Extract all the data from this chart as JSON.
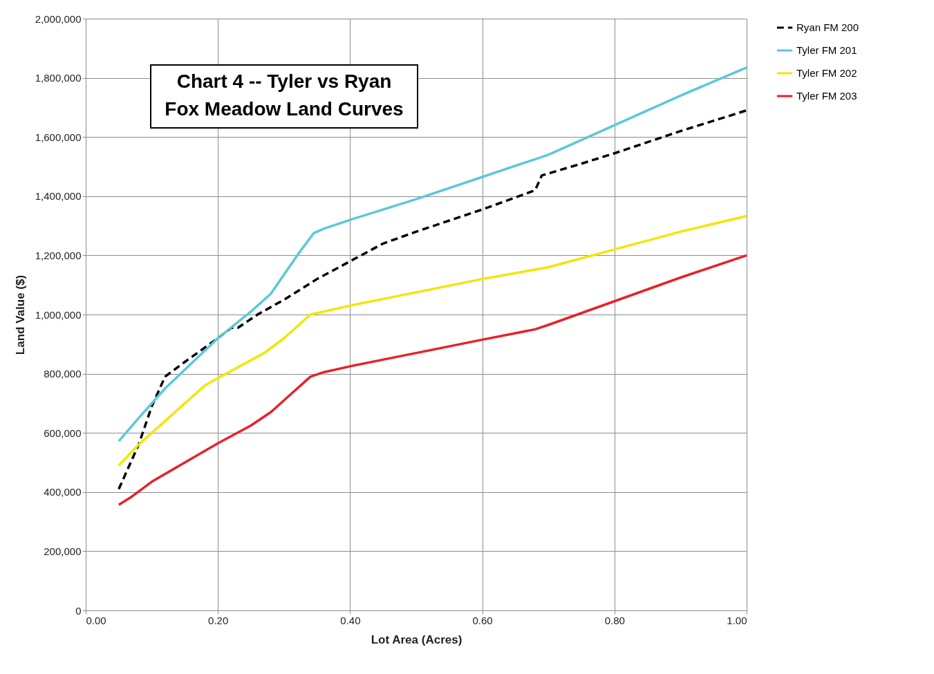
{
  "chart_data": {
    "type": "line",
    "title": "Chart 4 -- Tyler vs Ryan\nFox Meadow Land Curves",
    "xlabel": "Lot Area (Acres)",
    "ylabel": "Land Value ($)",
    "xlim": [
      0,
      1
    ],
    "xticks": [
      {
        "value": 0,
        "label": "0.00"
      },
      {
        "value": 0.2,
        "label": "0.20"
      },
      {
        "value": 0.4,
        "label": "0.40"
      },
      {
        "value": 0.6,
        "label": "0.60"
      },
      {
        "value": 0.8,
        "label": "0.80"
      },
      {
        "value": 1,
        "label": "1.00"
      }
    ],
    "ylim": [
      0,
      2000000
    ],
    "yticks": [
      0,
      {
        "value": 200000,
        "label": "200,000"
      },
      {
        "value": 400000,
        "label": "400,000"
      },
      {
        "value": 600000,
        "label": "600,000"
      },
      {
        "value": 800000,
        "label": "800,000"
      },
      {
        "value": 1000000,
        "label": "1,000,000"
      },
      {
        "value": 1200000,
        "label": "1,200,000"
      },
      {
        "value": 1400000,
        "label": "1,400,000"
      },
      {
        "value": 1600000,
        "label": "1,600,000"
      },
      {
        "value": 1800000,
        "label": "1,800,000"
      },
      {
        "value": 2000000,
        "label": "2,000,000"
      }
    ],
    "grid": true,
    "legend": "right",
    "marker": "none",
    "series": [
      {
        "name": "Ryan FM 200",
        "color": "#000000",
        "line_style": "dashed",
        "x": [
          0.05,
          0.08,
          0.1,
          0.12,
          0.15,
          0.2,
          0.22,
          0.23,
          0.26,
          0.3,
          0.35,
          0.4,
          0.45,
          0.5,
          0.6,
          0.68,
          0.69,
          0.75,
          0.8,
          0.9,
          1.0
        ],
        "values": [
          410000,
          560000,
          690000,
          790000,
          840000,
          920000,
          955000,
          955000,
          1000000,
          1050000,
          1120000,
          1180000,
          1240000,
          1280000,
          1355000,
          1420000,
          1470000,
          1510000,
          1545000,
          1620000,
          1690000
        ]
      },
      {
        "name": "Tyler FM 201",
        "color": "#5bc8d8",
        "line_style": "solid",
        "x": [
          0.05,
          0.08,
          0.12,
          0.2,
          0.25,
          0.28,
          0.32,
          0.345,
          0.36,
          0.4,
          0.5,
          0.6,
          0.68,
          0.7,
          0.8,
          0.9,
          1.0
        ],
        "values": [
          572000,
          650000,
          750000,
          920000,
          1010000,
          1070000,
          1200000,
          1275000,
          1290000,
          1320000,
          1390000,
          1465000,
          1525000,
          1540000,
          1640000,
          1740000,
          1835000
        ]
      },
      {
        "name": "Tyler FM 202",
        "color": "#f2e600",
        "line_style": "solid",
        "x": [
          0.05,
          0.08,
          0.12,
          0.18,
          0.2,
          0.27,
          0.3,
          0.34,
          0.36,
          0.4,
          0.5,
          0.6,
          0.7,
          0.8,
          0.9,
          1.0
        ],
        "values": [
          490000,
          560000,
          640000,
          760000,
          785000,
          870000,
          920000,
          1000000,
          1010000,
          1030000,
          1075000,
          1120000,
          1160000,
          1220000,
          1280000,
          1333000
        ]
      },
      {
        "name": "Tyler FM 203",
        "color": "#e8202a",
        "line_style": "solid",
        "x": [
          0.05,
          0.07,
          0.1,
          0.15,
          0.2,
          0.25,
          0.28,
          0.31,
          0.34,
          0.36,
          0.4,
          0.5,
          0.6,
          0.68,
          0.7,
          0.8,
          0.9,
          1.0
        ],
        "values": [
          357000,
          385000,
          435000,
          500000,
          565000,
          625000,
          670000,
          730000,
          790000,
          805000,
          825000,
          870000,
          915000,
          950000,
          965000,
          1045000,
          1125000,
          1200000
        ]
      }
    ]
  }
}
